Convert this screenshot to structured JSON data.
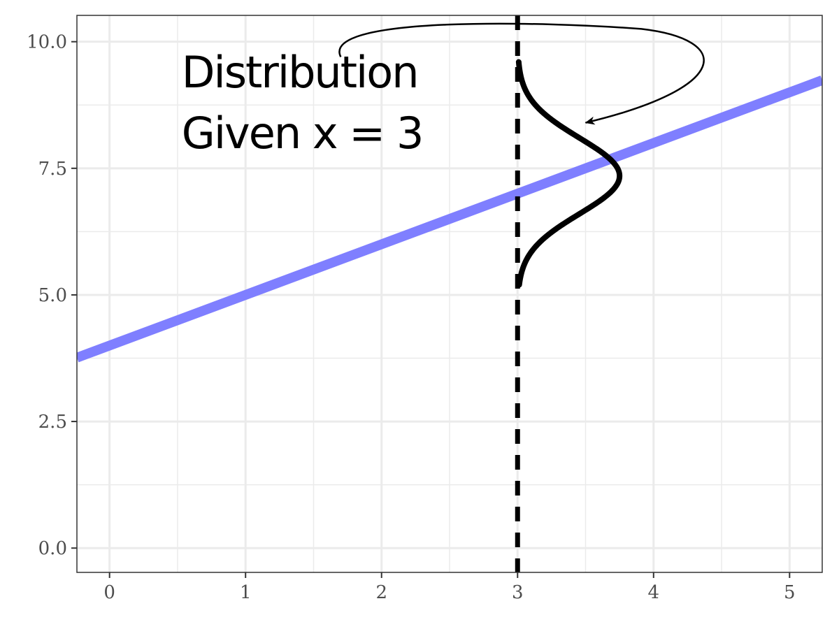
{
  "chart_data": {
    "type": "line",
    "title": "",
    "xlabel": "",
    "ylabel": "",
    "xlim": [
      -0.24,
      5.24
    ],
    "ylim": [
      -0.48,
      10.52
    ],
    "x_ticks": [
      0,
      1,
      2,
      3,
      4,
      5
    ],
    "x_tick_labels": [
      "0",
      "1",
      "2",
      "3",
      "4",
      "5"
    ],
    "y_ticks": [
      0,
      2.5,
      5,
      7.5,
      10
    ],
    "y_tick_labels": [
      "0.0",
      "2.5",
      "5.0",
      "7.5",
      "10.0"
    ],
    "grid": true,
    "legend": "none",
    "regression_line": {
      "intercept": 4,
      "slope": 1,
      "color": "#7f7fff"
    },
    "conditional_x": 3,
    "conditional_line_style": "dashed",
    "distribution_curve": {
      "center_x": 3,
      "mean_y": 7.35,
      "sd_y": 0.75,
      "y_from": 5.2,
      "y_to": 9.6,
      "peak_x": 3.75
    },
    "annotation": {
      "lines": [
        "Distribution",
        "Given x = 3"
      ],
      "text_x": 0.53,
      "text_y_top": 9.1,
      "text_y_bottom": 7.9
    },
    "arrow": {
      "from": [
        1.7,
        9.7
      ],
      "to": [
        3.5,
        8.4
      ]
    },
    "colors": {
      "regression": "#7f7fff",
      "annotation": "#000000",
      "panel_border": "#333333",
      "grid": "#ebebeb"
    }
  }
}
